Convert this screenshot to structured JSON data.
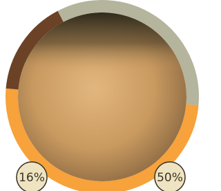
{
  "chart_data": {
    "type": "donut",
    "values": [
      50,
      16,
      34
    ],
    "value_labels": [
      "50%",
      "16%",
      null
    ],
    "colors": [
      "#f7a23a",
      "#6b4226",
      "#b5b49c"
    ]
  }
}
